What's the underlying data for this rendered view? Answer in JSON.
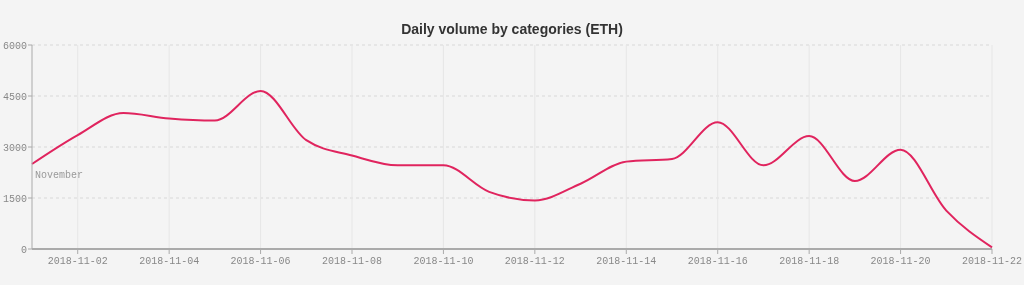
{
  "chart_data": {
    "type": "line",
    "title": "Daily volume by categories (ETH)",
    "x": [
      "2018-11-01",
      "2018-11-02",
      "2018-11-03",
      "2018-11-04",
      "2018-11-05",
      "2018-11-06",
      "2018-11-07",
      "2018-11-08",
      "2018-11-09",
      "2018-11-10",
      "2018-11-11",
      "2018-11-12",
      "2018-11-13",
      "2018-11-14",
      "2018-11-15",
      "2018-11-16",
      "2018-11-17",
      "2018-11-18",
      "2018-11-19",
      "2018-11-20",
      "2018-11-21",
      "2018-11-22"
    ],
    "series": [
      {
        "color": "#e0245e",
        "values": [
          2500,
          3350,
          4000,
          3840,
          3780,
          4650,
          3200,
          2750,
          2460,
          2460,
          1680,
          1430,
          1920,
          2570,
          2650,
          3730,
          2460,
          3320,
          2000,
          2920,
          1130,
          50
        ]
      }
    ],
    "xlim": [
      "2018-11-01",
      "2018-11-22"
    ],
    "xticks": [
      "2018-11-02",
      "2018-11-04",
      "2018-11-06",
      "2018-11-08",
      "2018-11-10",
      "2018-11-12",
      "2018-11-14",
      "2018-11-16",
      "2018-11-18",
      "2018-11-20",
      "2018-11-22"
    ],
    "ylim": [
      0,
      6000
    ],
    "yticks": [
      0,
      1500,
      3000,
      4500,
      6000
    ],
    "annotations": [
      "November"
    ],
    "grid": true,
    "marker": "none",
    "line_style": "solid"
  }
}
